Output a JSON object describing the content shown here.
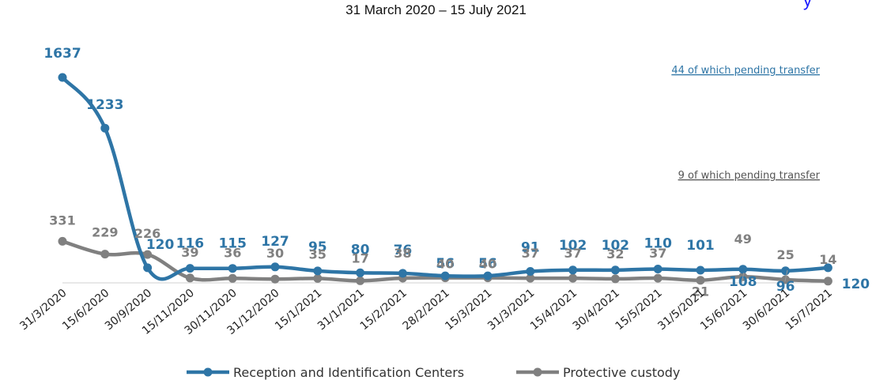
{
  "subtitle": "31 March 2020 – 15 July 2021",
  "title_fragment": "y",
  "annotations": {
    "blue_note": "44 of which pending transfer",
    "gray_note": "9  of which pending transfer"
  },
  "colors": {
    "blue": "#2e75a6",
    "gray": "#808080",
    "axis": "#d0d0d0",
    "title_blue": "#1a1aff"
  },
  "chart_data": {
    "type": "line",
    "title": "",
    "xlabel": "",
    "ylabel": "",
    "grid": false,
    "legend_position": "bottom",
    "ylim": [
      0,
      1750
    ],
    "x": [
      "31/3/2020",
      "15/6/2020",
      "30/9/2020",
      "15/11/2020",
      "30/11/2020",
      "31/12/2020",
      "15/1/2021",
      "31/1/2021",
      "15/2/2021",
      "28/2/2021",
      "15/3/2021",
      "31/3/2021",
      "15/4/2021",
      "30/4/2021",
      "15/5/2021",
      "31/5/2021",
      "15/6/2021",
      "30/6/2021",
      "15/7/2021"
    ],
    "series": [
      {
        "name": "Reception and Identification Centers",
        "color": "#2e75a6",
        "values": [
          1637,
          1233,
          120,
          116,
          115,
          127,
          95,
          80,
          76,
          56,
          56,
          91,
          102,
          102,
          110,
          101,
          108,
          96,
          120
        ],
        "labels": [
          "1637",
          "1233",
          "120",
          "116",
          "115",
          "127",
          "95",
          "80",
          "76",
          "56",
          "56",
          "91",
          "102",
          "102",
          "110",
          "101",
          "108",
          "96",
          "120"
        ]
      },
      {
        "name": "Protective custody",
        "color": "#808080",
        "values": [
          331,
          229,
          226,
          39,
          36,
          30,
          35,
          17,
          38,
          40,
          40,
          37,
          37,
          32,
          37,
          21,
          49,
          25,
          14
        ],
        "labels": [
          "331",
          "229",
          "226",
          "39",
          "36",
          "30",
          "35",
          "17",
          "38",
          "40",
          "40",
          "37",
          "37",
          "32",
          "37",
          "21",
          "49",
          "25",
          "14"
        ]
      }
    ]
  }
}
